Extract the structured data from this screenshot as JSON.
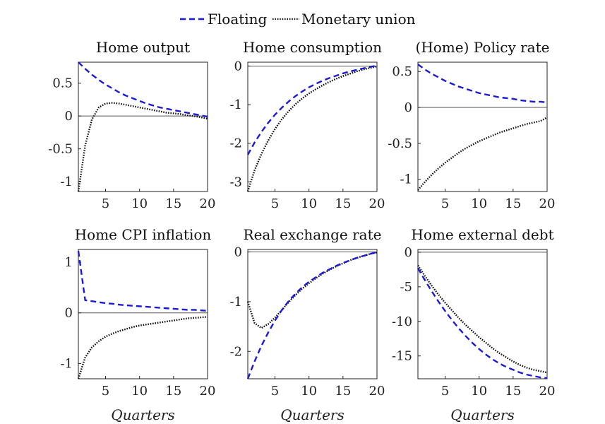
{
  "legend": {
    "position": "top-center",
    "items": [
      {
        "label": "Floating",
        "color": "#1a1adc",
        "style": "dashed"
      },
      {
        "label": "Monetary union",
        "color": "#111111",
        "style": "dotted"
      }
    ]
  },
  "chart_data": [
    {
      "type": "line",
      "title": "Home output",
      "xlabel": "",
      "xlim": [
        1,
        20
      ],
      "ylim": [
        -1.15,
        0.82
      ],
      "xticks": [
        5,
        10,
        15,
        20
      ],
      "yticks": [
        0.5,
        0,
        -0.5,
        -1
      ],
      "xtick_labels": [
        "5",
        "10",
        "15",
        "20"
      ],
      "ytick_labels": [
        "0.5",
        "0",
        "-0.5",
        "-1"
      ],
      "x": [
        1,
        2,
        3,
        4,
        5,
        6,
        7,
        8,
        9,
        10,
        11,
        12,
        13,
        14,
        15,
        16,
        17,
        18,
        19,
        20
      ],
      "series": [
        {
          "name": "Floating",
          "values": [
            0.82,
            0.72,
            0.63,
            0.55,
            0.48,
            0.42,
            0.36,
            0.31,
            0.27,
            0.23,
            0.19,
            0.16,
            0.13,
            0.11,
            0.09,
            0.07,
            0.05,
            0.03,
            0.01,
            -0.01
          ]
        },
        {
          "name": "Monetary union",
          "values": [
            -1.15,
            -0.45,
            -0.05,
            0.13,
            0.19,
            0.2,
            0.19,
            0.17,
            0.15,
            0.13,
            0.11,
            0.09,
            0.07,
            0.05,
            0.04,
            0.03,
            0.01,
            0.0,
            -0.02,
            -0.04
          ]
        }
      ]
    },
    {
      "type": "line",
      "title": "Home consumption",
      "xlabel": "",
      "xlim": [
        1,
        20
      ],
      "ylim": [
        -3.25,
        0.1
      ],
      "xticks": [
        5,
        10,
        15,
        20
      ],
      "yticks": [
        0,
        -1,
        -2,
        -3
      ],
      "xtick_labels": [
        "5",
        "10",
        "15",
        "20"
      ],
      "ytick_labels": [
        "0",
        "-1",
        "-2",
        "-3"
      ],
      "x": [
        1,
        2,
        3,
        4,
        5,
        6,
        7,
        8,
        9,
        10,
        11,
        12,
        13,
        14,
        15,
        16,
        17,
        18,
        19,
        20
      ],
      "series": [
        {
          "name": "Floating",
          "values": [
            -2.3,
            -1.98,
            -1.71,
            -1.47,
            -1.26,
            -1.08,
            -0.92,
            -0.78,
            -0.66,
            -0.55,
            -0.46,
            -0.38,
            -0.31,
            -0.25,
            -0.19,
            -0.14,
            -0.1,
            -0.06,
            -0.02,
            0.01
          ]
        },
        {
          "name": "Monetary union",
          "values": [
            -3.25,
            -2.7,
            -2.28,
            -1.93,
            -1.63,
            -1.38,
            -1.17,
            -0.99,
            -0.84,
            -0.71,
            -0.6,
            -0.5,
            -0.41,
            -0.33,
            -0.26,
            -0.2,
            -0.14,
            -0.09,
            -0.05,
            -0.01
          ]
        }
      ]
    },
    {
      "type": "line",
      "title": "(Home) Policy rate",
      "xlabel": "",
      "xlim": [
        1,
        20
      ],
      "ylim": [
        -1.17,
        0.63
      ],
      "xticks": [
        5,
        10,
        15,
        20
      ],
      "yticks": [
        0.5,
        0,
        -0.5,
        -1
      ],
      "xtick_labels": [
        "5",
        "10",
        "15",
        "20"
      ],
      "ytick_labels": [
        "0.5",
        "0",
        "-0.5",
        "-1"
      ],
      "x": [
        1,
        2,
        3,
        4,
        5,
        6,
        7,
        8,
        9,
        10,
        11,
        12,
        13,
        14,
        15,
        16,
        17,
        18,
        19,
        20
      ],
      "series": [
        {
          "name": "Floating",
          "values": [
            0.6,
            0.53,
            0.47,
            0.42,
            0.37,
            0.33,
            0.29,
            0.26,
            0.23,
            0.2,
            0.18,
            0.16,
            0.14,
            0.13,
            0.12,
            0.1,
            0.09,
            0.08,
            0.08,
            0.07
          ]
        },
        {
          "name": "Monetary union",
          "values": [
            -1.15,
            -1.04,
            -0.94,
            -0.85,
            -0.77,
            -0.7,
            -0.63,
            -0.57,
            -0.52,
            -0.47,
            -0.43,
            -0.39,
            -0.35,
            -0.32,
            -0.29,
            -0.26,
            -0.23,
            -0.21,
            -0.19,
            -0.14
          ]
        }
      ]
    },
    {
      "type": "line",
      "title": "Home CPI inflation",
      "xlabel": "Quarters",
      "xlim": [
        1,
        20
      ],
      "ylim": [
        -1.3,
        1.25
      ],
      "xticks": [
        5,
        10,
        15,
        20
      ],
      "yticks": [
        1,
        0,
        -1
      ],
      "xtick_labels": [
        "5",
        "10",
        "15",
        "20"
      ],
      "ytick_labels": [
        "1",
        "0",
        "-1"
      ],
      "x": [
        1,
        2,
        3,
        4,
        5,
        6,
        7,
        8,
        9,
        10,
        11,
        12,
        13,
        14,
        15,
        16,
        17,
        18,
        19,
        20
      ],
      "series": [
        {
          "name": "Floating",
          "values": [
            1.22,
            0.25,
            0.23,
            0.21,
            0.19,
            0.18,
            0.16,
            0.15,
            0.14,
            0.13,
            0.12,
            0.11,
            0.1,
            0.09,
            0.08,
            0.07,
            0.06,
            0.06,
            0.05,
            0.04
          ]
        },
        {
          "name": "Monetary union",
          "values": [
            -1.3,
            -0.88,
            -0.68,
            -0.56,
            -0.47,
            -0.41,
            -0.36,
            -0.32,
            -0.28,
            -0.25,
            -0.23,
            -0.21,
            -0.19,
            -0.17,
            -0.15,
            -0.13,
            -0.11,
            -0.1,
            -0.09,
            -0.08
          ]
        }
      ]
    },
    {
      "type": "line",
      "title": "Real exchange rate",
      "xlabel": "Quarters",
      "xlim": [
        1,
        20
      ],
      "ylim": [
        -2.55,
        0.05
      ],
      "xticks": [
        5,
        10,
        15,
        20
      ],
      "yticks": [
        0,
        -1,
        -2
      ],
      "xtick_labels": [
        "5",
        "10",
        "15",
        "20"
      ],
      "ytick_labels": [
        "0",
        "-1",
        "-2"
      ],
      "x": [
        1,
        2,
        3,
        4,
        5,
        6,
        7,
        8,
        9,
        10,
        11,
        12,
        13,
        14,
        15,
        16,
        17,
        18,
        19,
        20
      ],
      "series": [
        {
          "name": "Floating",
          "values": [
            -2.55,
            -2.2,
            -1.89,
            -1.62,
            -1.38,
            -1.17,
            -0.99,
            -0.84,
            -0.71,
            -0.6,
            -0.51,
            -0.42,
            -0.35,
            -0.28,
            -0.22,
            -0.17,
            -0.12,
            -0.08,
            -0.04,
            0.0
          ]
        },
        {
          "name": "Monetary union",
          "values": [
            -1.0,
            -1.43,
            -1.53,
            -1.45,
            -1.32,
            -1.17,
            -1.01,
            -0.87,
            -0.74,
            -0.63,
            -0.53,
            -0.44,
            -0.36,
            -0.29,
            -0.23,
            -0.17,
            -0.12,
            -0.08,
            -0.04,
            -0.01
          ]
        }
      ]
    },
    {
      "type": "line",
      "title": "Home external debt",
      "xlabel": "Quarters",
      "xlim": [
        1,
        20
      ],
      "ylim": [
        -18.3,
        0.4
      ],
      "xticks": [
        5,
        10,
        15,
        20
      ],
      "yticks": [
        0,
        -5,
        -10,
        -15
      ],
      "xtick_labels": [
        "5",
        "10",
        "15",
        "20"
      ],
      "ytick_labels": [
        "0",
        "-5",
        "-10",
        "-15"
      ],
      "x": [
        1,
        2,
        3,
        4,
        5,
        6,
        7,
        8,
        9,
        10,
        11,
        12,
        13,
        14,
        15,
        16,
        17,
        18,
        19,
        20
      ],
      "series": [
        {
          "name": "Floating",
          "values": [
            -2.3,
            -4.0,
            -5.6,
            -7.1,
            -8.5,
            -9.8,
            -11.0,
            -12.1,
            -13.1,
            -14.0,
            -14.8,
            -15.5,
            -16.1,
            -16.6,
            -17.0,
            -17.4,
            -17.7,
            -17.9,
            -18.1,
            -18.2
          ]
        },
        {
          "name": "Monetary union",
          "values": [
            -1.9,
            -3.4,
            -4.8,
            -6.1,
            -7.3,
            -8.4,
            -9.5,
            -10.5,
            -11.4,
            -12.3,
            -13.1,
            -13.9,
            -14.6,
            -15.2,
            -15.8,
            -16.3,
            -16.7,
            -17.0,
            -17.2,
            -17.4
          ]
        }
      ]
    }
  ]
}
